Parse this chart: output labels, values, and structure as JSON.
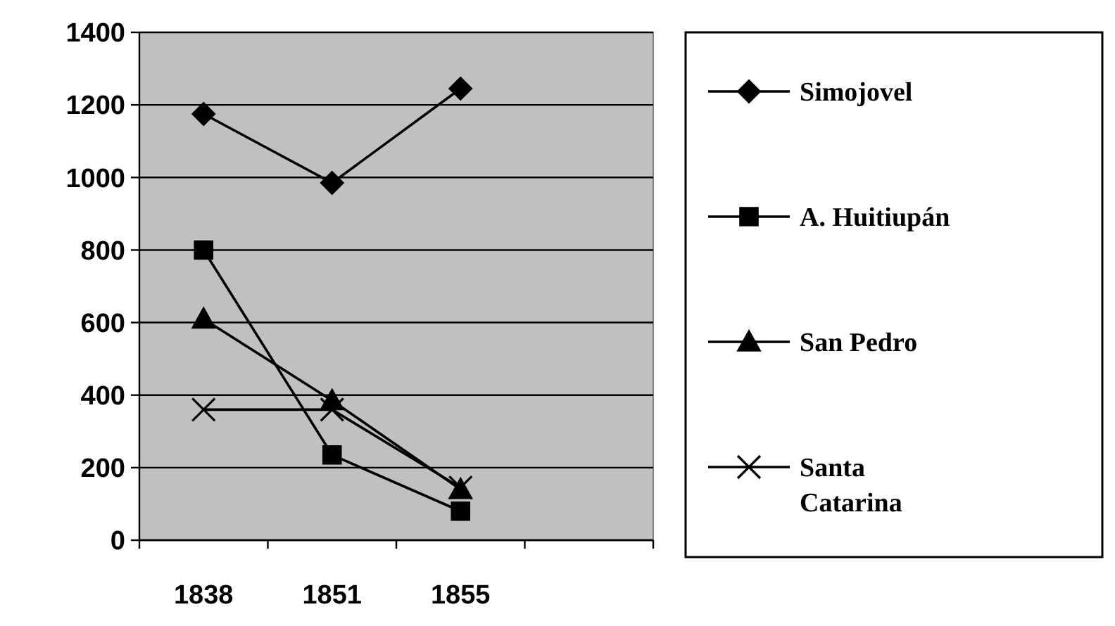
{
  "chart_data": {
    "type": "line",
    "categories": [
      "1838",
      "1851",
      "1855",
      null
    ],
    "ylim": [
      0,
      1400
    ],
    "yticks": [
      0,
      200,
      400,
      600,
      800,
      1000,
      1200,
      1400
    ],
    "grid": "y",
    "legend": "right",
    "series": [
      {
        "name": "Simojovel",
        "color": "#000000",
        "marker": "diamond",
        "values": [
          1175,
          985,
          1245,
          null
        ]
      },
      {
        "name": "A. Huitiupán",
        "color": "#000000",
        "marker": "square",
        "values": [
          800,
          235,
          80,
          null
        ]
      },
      {
        "name": "San Pedro",
        "color": "#000000",
        "marker": "triangle",
        "values": [
          610,
          385,
          140,
          null
        ]
      },
      {
        "name": "Santa Catarina",
        "color": "#000000",
        "marker": "cross",
        "values": [
          360,
          360,
          145,
          null
        ]
      }
    ]
  }
}
